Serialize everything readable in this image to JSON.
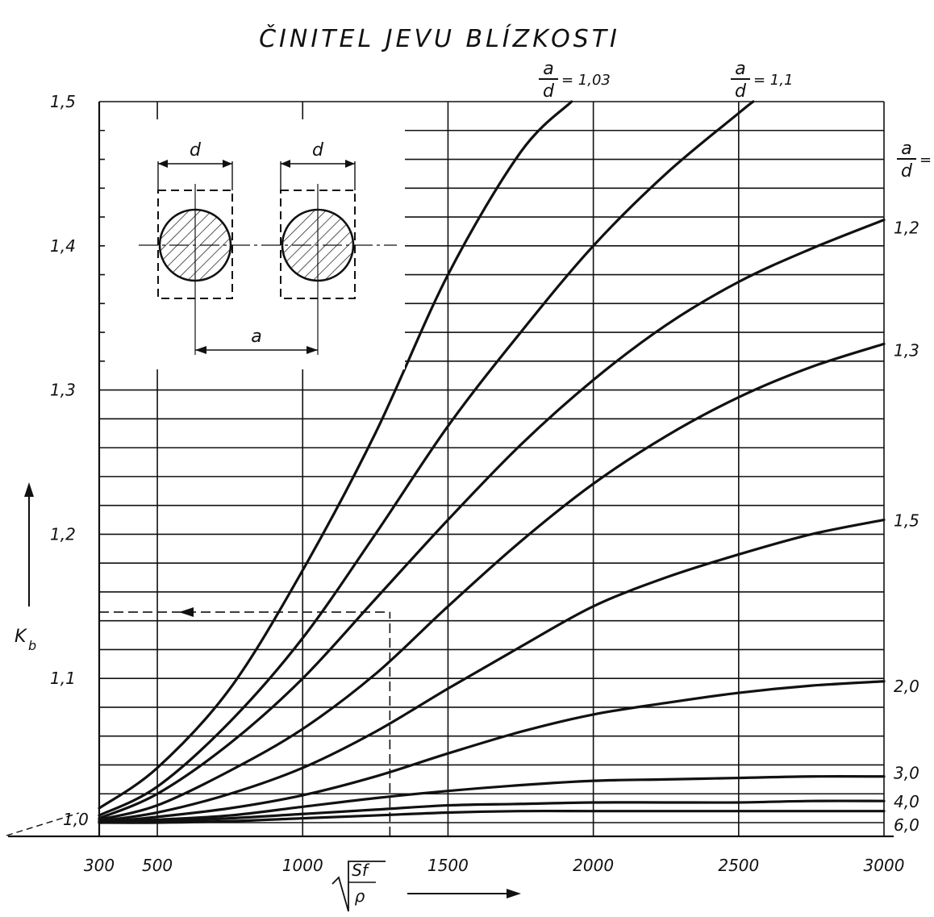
{
  "chart_data": {
    "type": "line",
    "title": "ČINITEL  JEVU  BLÍZKOSTI",
    "ylabel_main": "K",
    "ylabel_sub": "b",
    "xlabel_numerator": "Sf",
    "xlabel_denominator": "ρ",
    "xlim": [
      300,
      3000
    ],
    "ylim": [
      0.98,
      1.5
    ],
    "x_ticks": [
      300,
      500,
      1000,
      1500,
      2000,
      2500,
      3000
    ],
    "x_tick_labels": [
      "300",
      "500",
      "1000",
      "1500",
      "2000",
      "2500",
      "3000"
    ],
    "y_ticks": [
      1.0,
      1.1,
      1.2,
      1.3,
      1.4,
      1.5
    ],
    "y_tick_labels": [
      "1,0",
      "1,1",
      "1,2",
      "1,3",
      "1,4",
      "1,5"
    ],
    "grid": true,
    "series_label_head": {
      "numerator": "a",
      "denominator": "d",
      "suffix": "="
    },
    "series": [
      {
        "name": "1,03",
        "x": [
          300,
          500,
          750,
          1000,
          1250,
          1500,
          1750,
          1925
        ],
        "y": [
          1.01,
          1.038,
          1.093,
          1.175,
          1.27,
          1.38,
          1.465,
          1.5
        ]
      },
      {
        "name": "1,1",
        "x": [
          300,
          500,
          750,
          1000,
          1250,
          1500,
          1750,
          2000,
          2250,
          2500,
          2550
        ],
        "y": [
          1.005,
          1.025,
          1.07,
          1.128,
          1.2,
          1.275,
          1.34,
          1.4,
          1.45,
          1.492,
          1.5
        ]
      },
      {
        "name": "",
        "x": [
          300,
          500,
          750,
          1000,
          1250,
          1500,
          1750,
          2000,
          2250,
          2500,
          2750,
          3000
        ],
        "y": [
          1.003,
          1.02,
          1.055,
          1.1,
          1.155,
          1.21,
          1.262,
          1.307,
          1.345,
          1.375,
          1.398,
          1.418
        ]
      },
      {
        "name": "",
        "x": [
          300,
          500,
          750,
          1000,
          1250,
          1500,
          1750,
          2000,
          2250,
          2500,
          2750,
          3000
        ],
        "y": [
          1.002,
          1.012,
          1.036,
          1.065,
          1.103,
          1.15,
          1.195,
          1.235,
          1.268,
          1.295,
          1.316,
          1.332
        ]
      },
      {
        "name": "",
        "x": [
          300,
          500,
          750,
          1000,
          1250,
          1500,
          1750,
          2000,
          2250,
          2500,
          2750,
          3000
        ],
        "y": [
          1.001,
          1.007,
          1.02,
          1.038,
          1.063,
          1.093,
          1.122,
          1.15,
          1.17,
          1.186,
          1.2,
          1.21
        ]
      },
      {
        "name": "",
        "x": [
          300,
          500,
          750,
          1000,
          1250,
          1500,
          1750,
          2000,
          2250,
          2500,
          2750,
          3000
        ],
        "y": [
          1.0,
          1.004,
          1.01,
          1.019,
          1.032,
          1.048,
          1.063,
          1.075,
          1.083,
          1.09,
          1.095,
          1.098
        ]
      },
      {
        "name": "",
        "x": [
          300,
          500,
          750,
          1000,
          1250,
          1500,
          1750,
          2000,
          2250,
          2500,
          2750,
          3000
        ],
        "y": [
          1.0,
          1.002,
          1.005,
          1.011,
          1.017,
          1.022,
          1.026,
          1.029,
          1.03,
          1.031,
          1.032,
          1.032
        ]
      },
      {
        "name": "",
        "x": [
          300,
          500,
          750,
          1000,
          1250,
          1500,
          1750,
          2000,
          2250,
          2500,
          2750,
          3000
        ],
        "y": [
          1.0,
          1.001,
          1.003,
          1.006,
          1.009,
          1.012,
          1.013,
          1.014,
          1.014,
          1.014,
          1.015,
          1.015
        ]
      },
      {
        "name": "",
        "x": [
          300,
          500,
          750,
          1000,
          1250,
          1500,
          1750,
          2000,
          2250,
          2500,
          2750,
          3000
        ],
        "y": [
          1.0,
          1.0,
          1.001,
          1.003,
          1.005,
          1.007,
          1.008,
          1.008,
          1.008,
          1.008,
          1.008,
          1.008
        ]
      }
    ],
    "right_labels": [
      {
        "text": "1,2",
        "y": 1.413
      },
      {
        "text": "1,3",
        "y": 1.328
      },
      {
        "text": "1,5",
        "y": 1.21
      },
      {
        "text": "2,0",
        "y": 1.095
      },
      {
        "text": "3,0",
        "y": 1.035
      },
      {
        "text": "4,0",
        "y": 1.015
      },
      {
        "text": "6,0",
        "y": 1.0
      }
    ],
    "example_reading": {
      "x": 1300,
      "y": 1.146
    },
    "inset": {
      "d_label": "d",
      "a_label": "a"
    }
  }
}
